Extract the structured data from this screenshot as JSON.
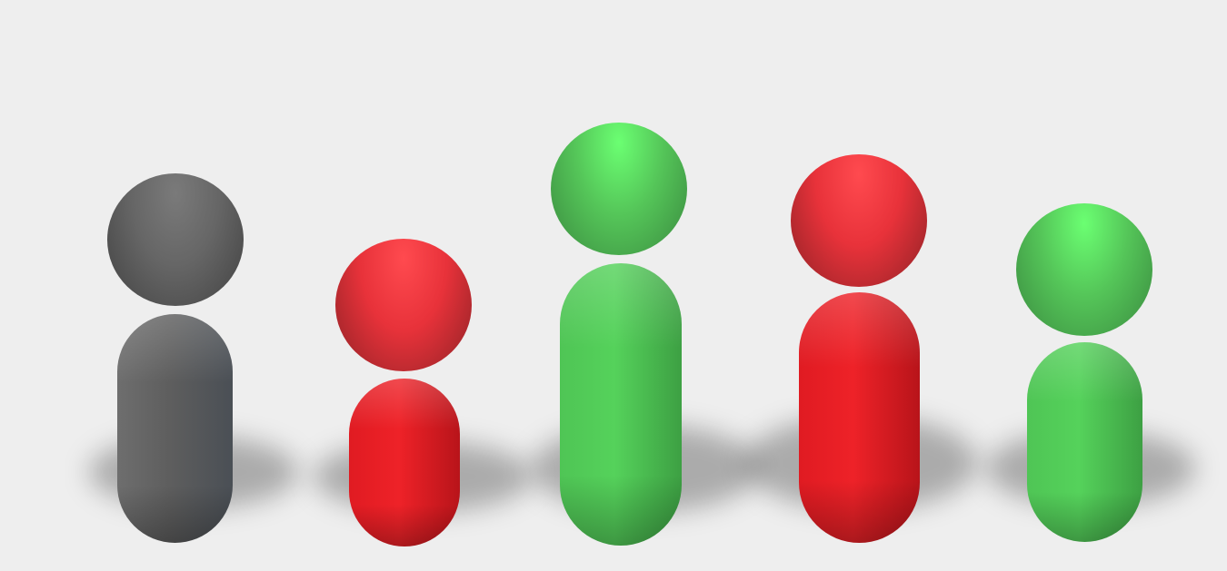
{
  "scene": {
    "background": "#eeeeee",
    "figures": [
      {
        "name": "figure-1",
        "color": "gray",
        "head_color": "#666666",
        "body_color": "#5d5d5d"
      },
      {
        "name": "figure-2",
        "color": "red",
        "head_color": "#e8323a",
        "body_color": "#e11d25"
      },
      {
        "name": "figure-3",
        "color": "green",
        "head_color": "#55c659",
        "body_color": "#4dbf53"
      },
      {
        "name": "figure-4",
        "color": "red",
        "head_color": "#e8323a",
        "body_color": "#e11d25"
      },
      {
        "name": "figure-5",
        "color": "green",
        "head_color": "#55c659",
        "body_color": "#4dbf53"
      }
    ]
  }
}
